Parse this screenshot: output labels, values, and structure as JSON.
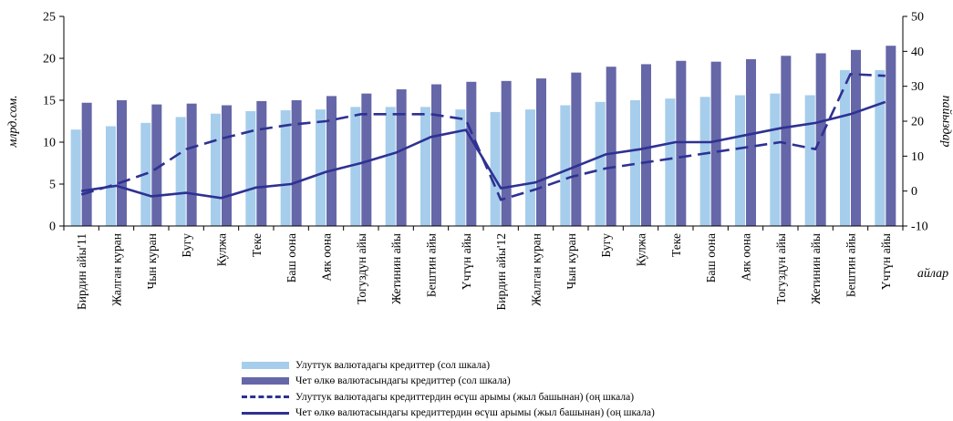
{
  "colors": {
    "bar_local": "#A6CEEC",
    "bar_foreign": "#6667A8",
    "line": "#2E3192",
    "axis": "#000000"
  },
  "chart_data": {
    "type": "bar",
    "categories": [
      "Бирдин айы'11",
      "Жалган куран",
      "Чын куран",
      "Бугу",
      "Кулжа",
      "Теке",
      "Баш оона",
      "Аяк оона",
      "Тогуздун айы",
      "Жетинин айы",
      "Бештин айы",
      "Үчтүн айы",
      "Бирдин айы'12",
      "Жалган куран",
      "Чын куран",
      "Бугу",
      "Кулжа",
      "Теке",
      "Баш оона",
      "Аяк оона",
      "Тогуздун айы",
      "Жетинин айы",
      "Бештин айы",
      "Үчтүн айы"
    ],
    "ylabel": "млрд.сом.",
    "y2label": "пайыздар",
    "xlabel": "айлар",
    "ylim": [
      0,
      25
    ],
    "y2lim": [
      -10,
      50
    ],
    "yticks": [
      "0",
      "5",
      "10",
      "15",
      "20",
      "25"
    ],
    "y2ticks": [
      "-10",
      "0",
      "10",
      "20",
      "30",
      "40",
      "50"
    ],
    "series": [
      {
        "name": "Улуттук валютадагы кредиттер (сол шкала)",
        "kind": "bar",
        "axis": "left",
        "values": [
          11.5,
          11.9,
          12.3,
          13.0,
          13.4,
          13.7,
          13.8,
          13.9,
          14.2,
          14.2,
          14.2,
          13.9,
          13.6,
          13.9,
          14.4,
          14.8,
          15.0,
          15.2,
          15.4,
          15.6,
          15.8,
          15.6,
          18.6,
          18.6
        ]
      },
      {
        "name": "Чет өлкө валютасындагы кредиттер (сол шкала)",
        "kind": "bar",
        "axis": "left",
        "values": [
          14.7,
          15.0,
          14.5,
          14.6,
          14.4,
          14.9,
          15.0,
          15.5,
          15.8,
          16.3,
          16.9,
          17.2,
          17.3,
          17.6,
          18.3,
          19.0,
          19.3,
          19.7,
          19.6,
          19.9,
          20.3,
          20.6,
          21.0,
          21.5
        ]
      },
      {
        "name": "Улуттук валютадагы кредиттердин өсүш арымы (жыл башынан) (оң шкала)",
        "kind": "line",
        "style": "dashed",
        "axis": "right",
        "values": [
          -1.0,
          2.0,
          5.5,
          12.0,
          15.0,
          17.5,
          19.0,
          20.0,
          22.0,
          22.0,
          22.0,
          20.5,
          -2.5,
          0.5,
          4.0,
          6.5,
          8.0,
          9.5,
          11.0,
          12.5,
          14.0,
          12.0,
          33.5,
          33.0
        ]
      },
      {
        "name": "Чет өлкө валютасындагы кредиттердин өсүш арымы (жыл башынан) (оң шкала)",
        "kind": "line",
        "style": "solid",
        "axis": "right",
        "values": [
          0.0,
          1.5,
          -1.5,
          -0.5,
          -2.0,
          1.0,
          2.0,
          5.5,
          8.0,
          11.0,
          15.5,
          17.5,
          0.8,
          2.5,
          6.5,
          10.5,
          12.0,
          14.0,
          14.0,
          16.0,
          18.0,
          19.5,
          22.0,
          25.5
        ]
      }
    ],
    "legend_position": "bottom",
    "grid": false
  }
}
